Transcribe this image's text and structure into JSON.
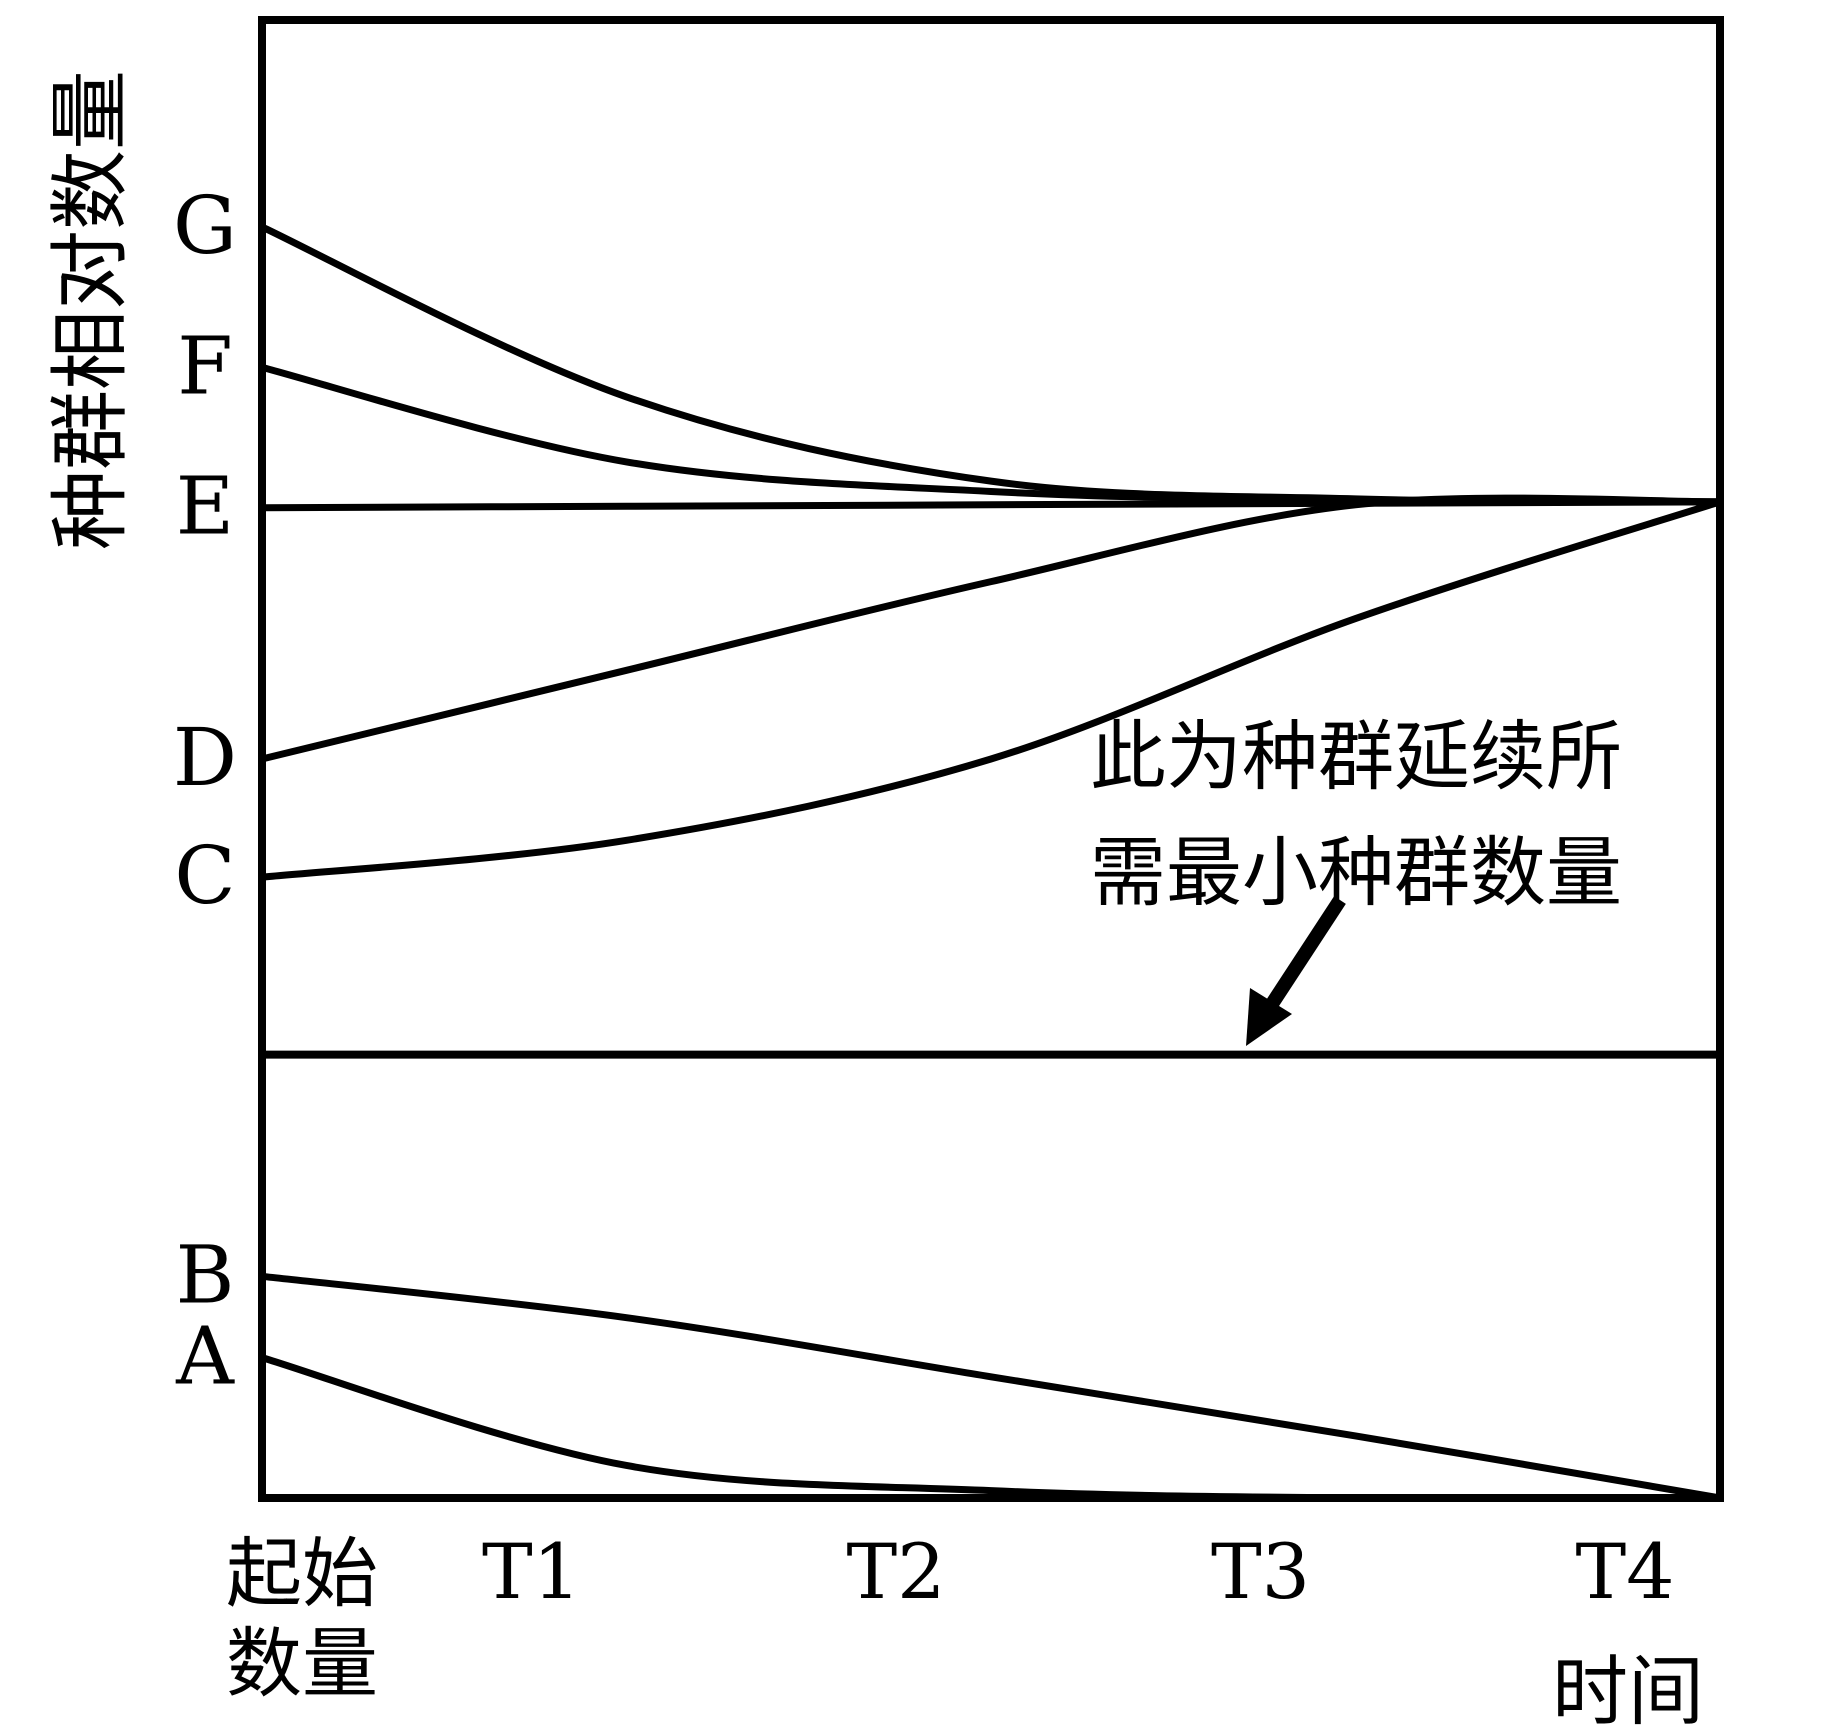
{
  "chart_data": {
    "type": "line",
    "title": "",
    "ylabel": "种群相对数量",
    "xlabel": "时间",
    "x_categories": [
      "起始数量",
      "T1",
      "T2",
      "T3",
      "T4"
    ],
    "x_start_label_lines": [
      "起始",
      "数量"
    ],
    "x": [
      0,
      1,
      2,
      3,
      4
    ],
    "xlim": [
      0,
      4
    ],
    "ylim": [
      0,
      10
    ],
    "threshold": {
      "value": 3,
      "label_lines": [
        "此为种群延续所",
        "需最小种群数量"
      ]
    },
    "series": [
      {
        "name": "G",
        "values": [
          8.6,
          7.45,
          6.88,
          6.76,
          6.74
        ]
      },
      {
        "name": "F",
        "values": [
          7.65,
          7.01,
          6.81,
          6.75,
          6.74
        ]
      },
      {
        "name": "E",
        "values": [
          6.7,
          6.71,
          6.72,
          6.73,
          6.74
        ]
      },
      {
        "name": "D",
        "values": [
          5.0,
          5.6,
          6.2,
          6.72,
          6.74
        ]
      },
      {
        "name": "C",
        "values": [
          4.2,
          4.45,
          5.0,
          5.95,
          6.74
        ]
      },
      {
        "name": "B",
        "values": [
          1.5,
          1.22,
          0.82,
          0.42,
          0.0
        ]
      },
      {
        "name": "A",
        "values": [
          0.95,
          0.22,
          0.05,
          0.0,
          0.0
        ]
      }
    ],
    "grid": false,
    "legend": "none"
  },
  "colors": {
    "line": "#000000",
    "background": "#ffffff"
  }
}
